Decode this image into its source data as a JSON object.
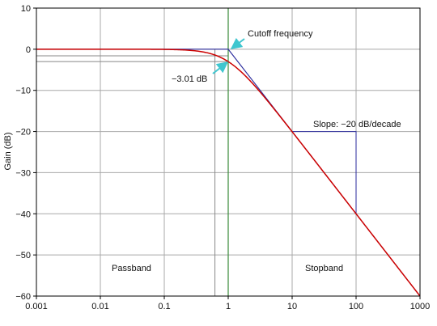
{
  "chart_data": {
    "type": "line",
    "title": "",
    "xlabel": "",
    "ylabel": "Gain (dB)",
    "x_scale": "log",
    "xlim": [
      0.001,
      1000
    ],
    "ylim": [
      -60,
      10
    ],
    "grid": true,
    "x_ticks": [
      0.001,
      0.01,
      0.1,
      1,
      10,
      100,
      1000
    ],
    "x_tick_labels": [
      "0.001",
      "0.01",
      "0.1",
      "1",
      "10",
      "100",
      "1000"
    ],
    "y_ticks": [
      10,
      0,
      -10,
      -20,
      -30,
      -40,
      -50,
      -60
    ],
    "y_tick_labels": [
      "10",
      "0",
      "−10",
      "−20",
      "−30",
      "−40",
      "−50",
      "−60"
    ],
    "series": [
      {
        "color": "#cc0000",
        "x": [
          0.001,
          0.01,
          0.1,
          0.3,
          0.5,
          0.7,
          1,
          1.5,
          2,
          3,
          5,
          10,
          30,
          100,
          300,
          1000
        ],
        "y": [
          0,
          0,
          -0.04,
          -0.37,
          -0.97,
          -1.74,
          -3.01,
          -5.12,
          -6.99,
          -10.0,
          -14.15,
          -20.04,
          -29.54,
          -40.0,
          -49.54,
          -60.0
        ]
      },
      {
        "color": "#2a2a9c",
        "x": [
          0.001,
          1,
          1000
        ],
        "y": [
          0,
          0,
          -60
        ]
      }
    ],
    "reference_lines": {
      "color": "#888888",
      "vertical_x": [
        0.62
      ],
      "horizontal_y": [
        -1.6,
        -3.01
      ]
    },
    "cutoff_line": {
      "x": 1,
      "color": "#3a8a3a"
    },
    "slope_guide": {
      "color": "#2a2a9c",
      "x": [
        10,
        100
      ],
      "y": [
        -20,
        -40
      ]
    },
    "annotations": {
      "cutoff": "Cutoff frequency",
      "db3": "−3.01 dB",
      "slope": "Slope: −20 dB/decade",
      "passband": "Passband",
      "stopband": "Stopband"
    },
    "arrow_color": "#3fc6cf"
  }
}
